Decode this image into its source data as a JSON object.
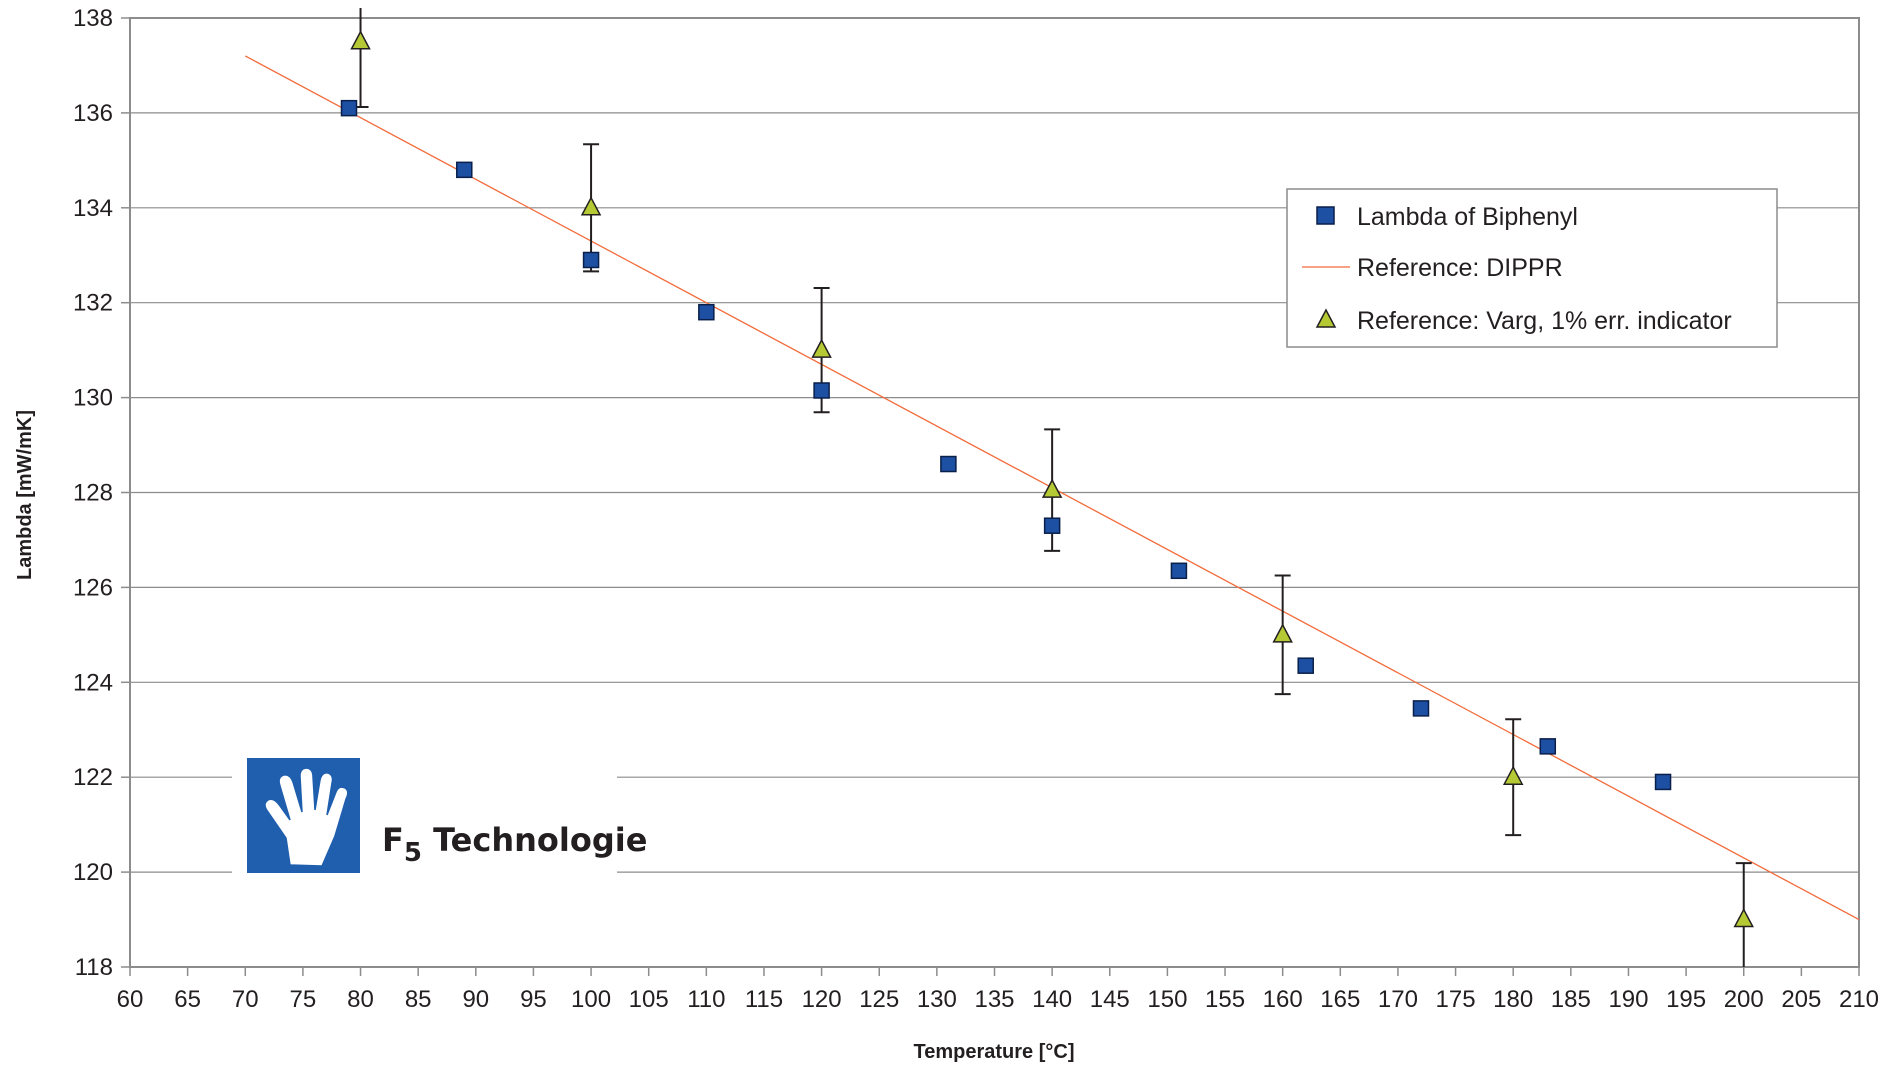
{
  "chart_data": {
    "type": "scatter",
    "xlabel": "Temperature [°C]",
    "ylabel": "Lambda [mW/mK]",
    "xlim": [
      60,
      210
    ],
    "ylim": [
      118,
      138
    ],
    "xticks": [
      60,
      65,
      70,
      75,
      80,
      85,
      90,
      95,
      100,
      105,
      110,
      115,
      120,
      125,
      130,
      135,
      140,
      145,
      150,
      155,
      160,
      165,
      170,
      175,
      180,
      185,
      190,
      195,
      200,
      205,
      210
    ],
    "yticks": [
      118,
      120,
      122,
      124,
      126,
      128,
      130,
      132,
      134,
      136,
      138
    ],
    "grid": "horizontal",
    "legend_position": "top-right",
    "series": [
      {
        "name": "Lambda of Biphenyl",
        "marker": "square",
        "color": "#1d4fa3",
        "points": [
          {
            "x": 79,
            "y": 136.1
          },
          {
            "x": 89,
            "y": 134.8
          },
          {
            "x": 100,
            "y": 132.9
          },
          {
            "x": 110,
            "y": 131.8
          },
          {
            "x": 120,
            "y": 130.15
          },
          {
            "x": 131,
            "y": 128.6
          },
          {
            "x": 140,
            "y": 127.3
          },
          {
            "x": 151,
            "y": 126.35
          },
          {
            "x": 162,
            "y": 124.35
          },
          {
            "x": 172,
            "y": 123.45
          },
          {
            "x": 183,
            "y": 122.65
          },
          {
            "x": 193,
            "y": 121.9
          }
        ]
      },
      {
        "name": "Reference: DIPPR",
        "style": "line",
        "color": "#f26b3a",
        "points": [
          {
            "x": 70,
            "y": 137.2
          },
          {
            "x": 210,
            "y": 119.0
          }
        ]
      },
      {
        "name": "Reference: Varg, 1% err. indicator",
        "marker": "triangle",
        "color": "#b5c934",
        "error_pct": 1,
        "points": [
          {
            "x": 80,
            "y": 137.5
          },
          {
            "x": 100,
            "y": 134.0
          },
          {
            "x": 120,
            "y": 131.0
          },
          {
            "x": 140,
            "y": 128.05
          },
          {
            "x": 160,
            "y": 125.0
          },
          {
            "x": 180,
            "y": 122.0
          },
          {
            "x": 200,
            "y": 119.0
          }
        ]
      }
    ]
  },
  "logo": {
    "text_main": "F",
    "text_sub": "5",
    "text_rest": " Technologie",
    "icon": "hand-icon",
    "color": "#1f5fae"
  }
}
